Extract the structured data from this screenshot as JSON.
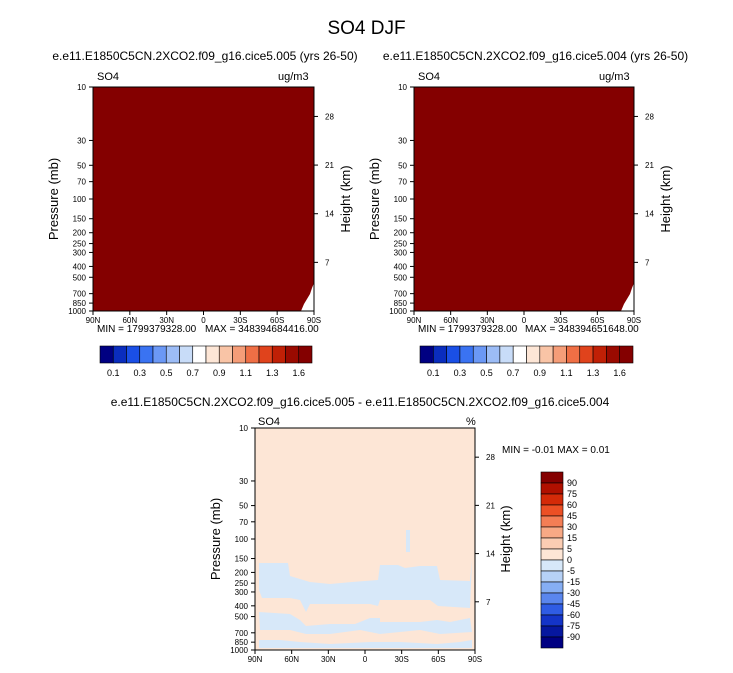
{
  "title": "SO4 DJF",
  "panels": [
    {
      "subtitle": "e.e11.E1850C5CN.2XCO2.f09_g16.cice5.005 (yrs 26-50)",
      "variable": "SO4",
      "units": "ug/m3",
      "ylabel": "Pressure (mb)",
      "ylabel_right": "Height (km)",
      "min_text": "MIN = 1799379328.00",
      "max_text": "MAX = 348394684416.00",
      "fill_color": "#840000"
    },
    {
      "subtitle": "e.e11.E1850C5CN.2XCO2.f09_g16.cice5.004 (yrs 26-50)",
      "variable": "SO4",
      "units": "ug/m3",
      "ylabel": "Pressure (mb)",
      "ylabel_right": "Height (km)",
      "min_text": "MIN = 1799379328.00",
      "max_text": "MAX = 348394651648.00",
      "fill_color": "#840000"
    }
  ],
  "diff_panel": {
    "subtitle": "e.e11.E1850C5CN.2XCO2.f09_g16.cice5.005 - e.e11.E1850C5CN.2XCO2.f09_g16.cice5.004",
    "variable": "SO4",
    "units": "%",
    "ylabel": "Pressure (mb)",
    "ylabel_right": "Height (km)",
    "minmax_text": "MIN = -0.01  MAX =  0.01",
    "base_color": "#fde6d6",
    "neg_color": "#d7e8f9"
  },
  "chart_data": [
    {
      "type": "heatmap",
      "x_ticks": [
        "90N",
        "60N",
        "30N",
        "0",
        "30S",
        "60S",
        "90S"
      ],
      "x_values": [
        90,
        60,
        30,
        0,
        -30,
        -60,
        -90
      ],
      "y_ticks": [
        "10",
        "30",
        "50",
        "70",
        "100",
        "150",
        "200",
        "250",
        "300",
        "400",
        "500",
        "700",
        "850",
        "1000"
      ],
      "y_values": [
        10,
        30,
        50,
        70,
        100,
        150,
        200,
        250,
        300,
        400,
        500,
        700,
        850,
        1000
      ],
      "y_scale": "log",
      "y_reversed": true,
      "ylim": [
        10,
        1000
      ],
      "xlim": [
        90,
        -90
      ],
      "height_ticks": [
        "28",
        "21",
        "14",
        "7"
      ],
      "height_values_km": [
        28,
        21,
        14,
        7
      ],
      "colorbar_labels": [
        "0.1",
        "0.3",
        "0.5",
        "0.7",
        "0.9",
        "1.1",
        "1.3",
        "1.6"
      ],
      "colorbar_colors": [
        "#000082",
        "#0a2dbe",
        "#1a4fe6",
        "#3a73f2",
        "#6b98f5",
        "#9cbcf6",
        "#c8dcf8",
        "#ffffff",
        "#fde6d6",
        "#f9c4a6",
        "#f59d78",
        "#ef6f45",
        "#e0431c",
        "#c02006",
        "#9a0a00",
        "#840000"
      ]
    },
    {
      "type": "heatmap",
      "x_ticks": [
        "90N",
        "60N",
        "30N",
        "0",
        "30S",
        "60S",
        "90S"
      ],
      "x_values": [
        90,
        60,
        30,
        0,
        -30,
        -60,
        -90
      ],
      "y_ticks": [
        "10",
        "30",
        "50",
        "70",
        "100",
        "150",
        "200",
        "250",
        "300",
        "400",
        "500",
        "700",
        "850",
        "1000"
      ],
      "y_values": [
        10,
        30,
        50,
        70,
        100,
        150,
        200,
        250,
        300,
        400,
        500,
        700,
        850,
        1000
      ],
      "y_scale": "log",
      "y_reversed": true,
      "ylim": [
        10,
        1000
      ],
      "xlim": [
        90,
        -90
      ],
      "height_ticks": [
        "28",
        "21",
        "14",
        "7"
      ],
      "height_values_km": [
        28,
        21,
        14,
        7
      ],
      "colorbar_labels": [
        "0.1",
        "0.3",
        "0.5",
        "0.7",
        "0.9",
        "1.1",
        "1.3",
        "1.6"
      ],
      "colorbar_colors": [
        "#000082",
        "#0a2dbe",
        "#1a4fe6",
        "#3a73f2",
        "#6b98f5",
        "#9cbcf6",
        "#c8dcf8",
        "#ffffff",
        "#fde6d6",
        "#f9c4a6",
        "#f59d78",
        "#ef6f45",
        "#e0431c",
        "#c02006",
        "#9a0a00",
        "#840000"
      ]
    },
    {
      "type": "heatmap",
      "x_ticks": [
        "90N",
        "60N",
        "30N",
        "0",
        "30S",
        "60S",
        "90S"
      ],
      "x_values": [
        90,
        60,
        30,
        0,
        -30,
        -60,
        -90
      ],
      "y_ticks": [
        "10",
        "30",
        "50",
        "70",
        "100",
        "150",
        "200",
        "250",
        "300",
        "400",
        "500",
        "700",
        "850",
        "1000"
      ],
      "y_values": [
        10,
        30,
        50,
        70,
        100,
        150,
        200,
        250,
        300,
        400,
        500,
        700,
        850,
        1000
      ],
      "y_scale": "log",
      "y_reversed": true,
      "ylim": [
        10,
        1000
      ],
      "xlim": [
        90,
        -90
      ],
      "height_ticks": [
        "28",
        "21",
        "14",
        "7"
      ],
      "height_values_km": [
        28,
        21,
        14,
        7
      ],
      "colorbar_labels": [
        "90",
        "75",
        "60",
        "45",
        "30",
        "15",
        "5",
        "0",
        "-5",
        "-15",
        "-30",
        "-45",
        "-60",
        "-75",
        "-90"
      ],
      "colorbar_colors": [
        "#840000",
        "#b01000",
        "#d42a08",
        "#ec5025",
        "#f47e55",
        "#f8a985",
        "#fbcdb3",
        "#fde6d6",
        "#d7e8f9",
        "#b6d1f6",
        "#86aef3",
        "#5a86ee",
        "#2f5ce4",
        "#1434c8",
        "#06179f",
        "#000082"
      ]
    }
  ]
}
